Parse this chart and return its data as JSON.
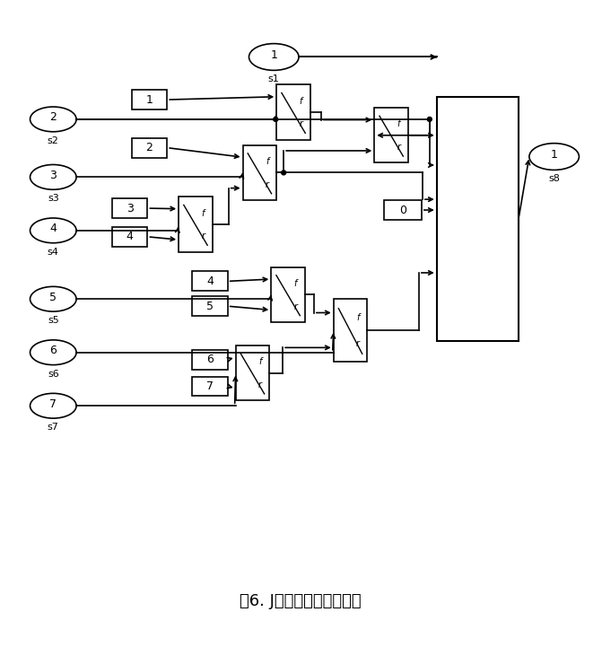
{
  "title": "図6. Jの内部処理のモデル",
  "title_fontsize": 13,
  "bg_color": "#ffffff",
  "fig_width": 6.71,
  "fig_height": 7.21,
  "dpi": 100,
  "xlim": [
    0,
    671
  ],
  "ylim": [
    0,
    721
  ]
}
